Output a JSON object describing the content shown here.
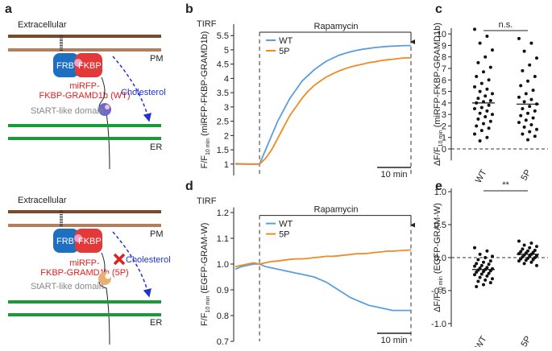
{
  "diagram": {
    "label": "a",
    "panels": [
      {
        "extracellular": "Extracellular",
        "pm": "PM",
        "frb": "FRB",
        "fkbp": "FKBP",
        "probe_line1": "miRFP-",
        "probe_line2": "FKBP-GRAMD1b (WT)",
        "cholesterol": "Cholesterol",
        "start": "StART-like domain",
        "er": "ER"
      },
      {
        "extracellular": "Extracellular",
        "pm": "PM",
        "frb": "FRB",
        "fkbp": "FKBP",
        "probe_line1": "miRFP-",
        "probe_line2": "FKBP-GRAMD1b (5P)",
        "cholesterol": "Cholesterol",
        "start": "StART-like domain",
        "er": "ER"
      }
    ]
  },
  "chart_data": [
    {
      "type": "line",
      "panel_label": "b",
      "method": "TIRF",
      "annotation": "Rapamycin",
      "scale_bar": "10 min",
      "ylabel_main": "F/F",
      "ylabel_sub": "10 min",
      "ylabel_rest": "(miRFP-FKBP-GRAMD1b)",
      "ylim": [
        0.6,
        5.9
      ],
      "yticks": [
        1,
        1.5,
        2,
        2.5,
        3,
        3.5,
        4,
        4.5,
        5,
        5.5
      ],
      "series": [
        {
          "name": "WT",
          "color": "#5a9de0",
          "values": [
            1.02,
            1.01,
            1.0,
            1.0,
            1.0,
            1.5,
            2.0,
            2.5,
            2.9,
            3.3,
            3.6,
            3.9,
            4.1,
            4.3,
            4.45,
            4.6,
            4.7,
            4.8,
            4.87,
            4.93,
            4.98,
            5.02,
            5.05,
            5.08,
            5.1,
            5.12,
            5.13,
            5.14,
            5.15,
            5.15
          ]
        },
        {
          "name": "5P",
          "color": "#f08a24",
          "values": [
            1.0,
            1.0,
            1.0,
            1.0,
            1.0,
            1.2,
            1.5,
            1.9,
            2.3,
            2.7,
            3.0,
            3.3,
            3.55,
            3.75,
            3.9,
            4.05,
            4.15,
            4.25,
            4.33,
            4.4,
            4.45,
            4.5,
            4.55,
            4.58,
            4.62,
            4.65,
            4.67,
            4.7,
            4.72,
            4.72
          ]
        }
      ]
    },
    {
      "type": "strip",
      "panel_label": "c",
      "annotation": "n.s.",
      "ylabel_main": "ΔF/F",
      "ylabel_sub": "10 min",
      "ylabel_rest": "(miRFP-FKBP-GRAMD1b)",
      "ylim": [
        -1,
        10.5
      ],
      "yticks": [
        0,
        1,
        2,
        3,
        4,
        5,
        6,
        7,
        8,
        9,
        10
      ],
      "categories": [
        "WT",
        "5P"
      ],
      "values": [
        [
          10.4,
          9.8,
          9.2,
          8.6,
          8.0,
          7.5,
          7.1,
          6.7,
          6.3,
          6.0,
          5.7,
          5.4,
          5.2,
          5.0,
          4.8,
          4.6,
          4.4,
          4.2,
          4.1,
          4.0,
          3.8,
          3.6,
          3.5,
          3.3,
          3.1,
          3.0,
          2.8,
          2.6,
          2.4,
          2.2,
          2.0,
          1.8,
          1.6,
          1.3,
          1.0,
          0.7
        ],
        [
          9.6,
          9.2,
          8.5,
          7.9,
          7.3,
          6.8,
          6.3,
          5.9,
          5.5,
          5.1,
          4.8,
          4.5,
          4.3,
          4.1,
          3.9,
          3.7,
          3.5,
          3.3,
          3.1,
          2.9,
          2.7,
          2.5,
          2.3,
          2.1,
          1.9,
          1.7,
          1.5,
          1.3,
          1.1,
          0.8
        ]
      ],
      "means": [
        4.0,
        3.9
      ]
    },
    {
      "type": "line",
      "panel_label": "d",
      "method": "TIRF",
      "annotation": "Rapamycin",
      "scale_bar": "10 min",
      "ylabel_main": "F/F",
      "ylabel_sub": "10 min",
      "ylabel_rest": "(EGFP-GRAM-W)",
      "ylim": [
        0.7,
        1.22
      ],
      "yticks": [
        0.7,
        0.8,
        0.9,
        {
          "value": 1,
          "label": "1.0"
        },
        1.1,
        1.2
      ],
      "series": [
        {
          "name": "WT",
          "color": "#5a9de0",
          "values": [
            0.98,
            0.99,
            0.995,
            1.0,
            1.0,
            0.99,
            0.985,
            0.98,
            0.975,
            0.97,
            0.965,
            0.96,
            0.955,
            0.95,
            0.94,
            0.93,
            0.915,
            0.9,
            0.885,
            0.87,
            0.86,
            0.85,
            0.84,
            0.835,
            0.83,
            0.825,
            0.82,
            0.82,
            0.82,
            0.82
          ]
        },
        {
          "name": "5P",
          "color": "#f08a24",
          "values": [
            0.99,
            0.995,
            1.0,
            1.005,
            1.0,
            1.005,
            1.01,
            1.012,
            1.015,
            1.018,
            1.02,
            1.02,
            1.022,
            1.025,
            1.027,
            1.03,
            1.03,
            1.032,
            1.035,
            1.037,
            1.04,
            1.04,
            1.042,
            1.045,
            1.047,
            1.05,
            1.05,
            1.052,
            1.053,
            1.055
          ]
        }
      ]
    },
    {
      "type": "strip",
      "panel_label": "e",
      "annotation": "**",
      "ylabel_main": "ΔF/F",
      "ylabel_sub": "10 min",
      "ylabel_rest": "(EGFP-GRAM-W)",
      "ylim": [
        -1.05,
        1.05
      ],
      "yticks": [
        {
          "value": -1,
          "label": "-1.0"
        },
        -0.5,
        {
          "value": 0,
          "label": "0.0"
        },
        0.5,
        {
          "value": 1,
          "label": "1.0"
        }
      ],
      "categories": [
        "WT",
        "5P"
      ],
      "values": [
        [
          0.15,
          0.1,
          0.05,
          0.02,
          0.0,
          -0.03,
          -0.05,
          -0.07,
          -0.09,
          -0.1,
          -0.12,
          -0.13,
          -0.15,
          -0.16,
          -0.17,
          -0.18,
          -0.19,
          -0.2,
          -0.21,
          -0.22,
          -0.24,
          -0.25,
          -0.26,
          -0.28,
          -0.3,
          -0.32,
          -0.34,
          -0.36,
          -0.38,
          -0.41,
          -0.44
        ],
        [
          0.25,
          0.22,
          0.19,
          0.17,
          0.15,
          0.13,
          0.11,
          0.1,
          0.09,
          0.08,
          0.07,
          0.06,
          0.05,
          0.04,
          0.03,
          0.02,
          0.01,
          0.0,
          -0.01,
          -0.02,
          -0.03,
          -0.04,
          -0.05,
          -0.07,
          -0.09,
          -0.12
        ]
      ],
      "means": [
        -0.18,
        0.05
      ]
    }
  ]
}
